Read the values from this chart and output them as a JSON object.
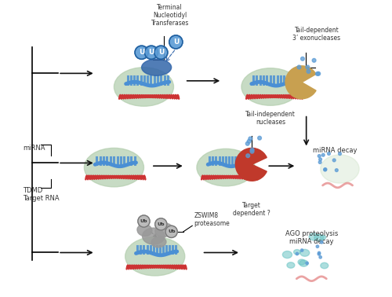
{
  "background_color": "#ffffff",
  "colors": {
    "green_blob": "#b5cfb0",
    "green_blob_light": "#c8dfc0",
    "blue_mirna": "#4a8fd4",
    "blue_mirna_dark": "#2060a0",
    "red_rna": "#cc3333",
    "red_nuclease": "#c0392b",
    "tan_exo": "#c8a050",
    "gray_proteasome": "#999999",
    "arrow_color": "#111111",
    "text_color": "#333333",
    "u_nucleotide_fill": "#5b9bd5",
    "u_nucleotide_border": "#2060a0",
    "blue_dots": "#5b9bd5",
    "teal_dots": "#7ec8c8",
    "dark_blue_enzyme": "#3366aa"
  },
  "labels": {
    "mirna": "miRNA",
    "tdmd": "TDMD\nTarget RNA",
    "terminal_nt": "Terminal\nNucleotidyl\nTransferases",
    "tail_dep": "Tail-dependent\n3’ exonucleases",
    "tail_indep": "Tail-independent\nnucleases",
    "target_dep": "Target\ndependent ?",
    "mirna_decay": "miRNA decay",
    "ago_proteolysis": "AGO proteolysis\nmiRNA decay",
    "zswim8": "ZSWIM8\nproteasome",
    "ub": "Ub"
  }
}
